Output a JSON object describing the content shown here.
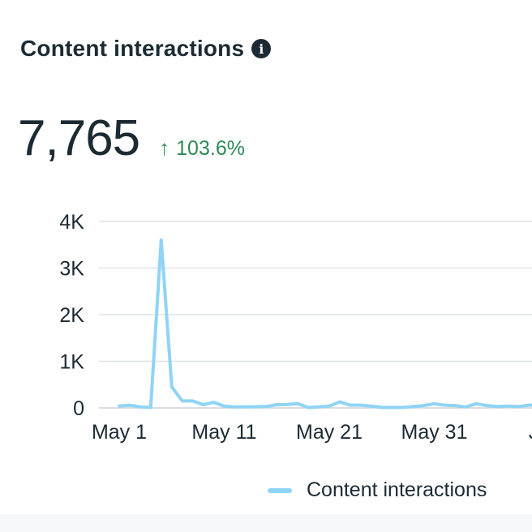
{
  "header": {
    "title": "Content interactions",
    "info_icon": "info-icon"
  },
  "metric": {
    "value": "7,765",
    "change_arrow": "↑",
    "change": "103.6%",
    "change_color": "#2d8a55"
  },
  "legend": {
    "label": "Content interactions",
    "color": "#8fd4f5"
  },
  "chart_data": {
    "type": "line",
    "title": "Content interactions",
    "xlabel": "",
    "ylabel": "",
    "ylim": [
      0,
      4000
    ],
    "y_ticks": [
      0,
      1000,
      2000,
      3000,
      4000
    ],
    "y_tick_labels": [
      "0",
      "1K",
      "2K",
      "3K",
      "4K"
    ],
    "x_tick_labels": [
      "May 1",
      "May 11",
      "May 21",
      "May 31",
      "Ju"
    ],
    "x_tick_positions": [
      1,
      11,
      21,
      31,
      41
    ],
    "grid": true,
    "legend_position": "bottom-right",
    "series": [
      {
        "name": "Content interactions",
        "color": "#8fd4f5",
        "x": [
          1,
          2,
          3,
          4,
          5,
          6,
          7,
          8,
          9,
          10,
          11,
          12,
          13,
          14,
          15,
          16,
          17,
          18,
          19,
          20,
          21,
          22,
          23,
          24,
          25,
          26,
          27,
          28,
          29,
          30,
          31,
          32,
          33,
          34,
          35,
          36,
          37,
          38,
          39,
          40,
          41
        ],
        "values": [
          40,
          60,
          20,
          10,
          3600,
          450,
          150,
          150,
          70,
          120,
          40,
          20,
          25,
          25,
          30,
          70,
          75,
          90,
          10,
          20,
          40,
          130,
          60,
          60,
          40,
          10,
          10,
          10,
          30,
          50,
          90,
          60,
          50,
          20,
          90,
          50,
          30,
          40,
          30,
          60,
          60
        ]
      }
    ]
  }
}
